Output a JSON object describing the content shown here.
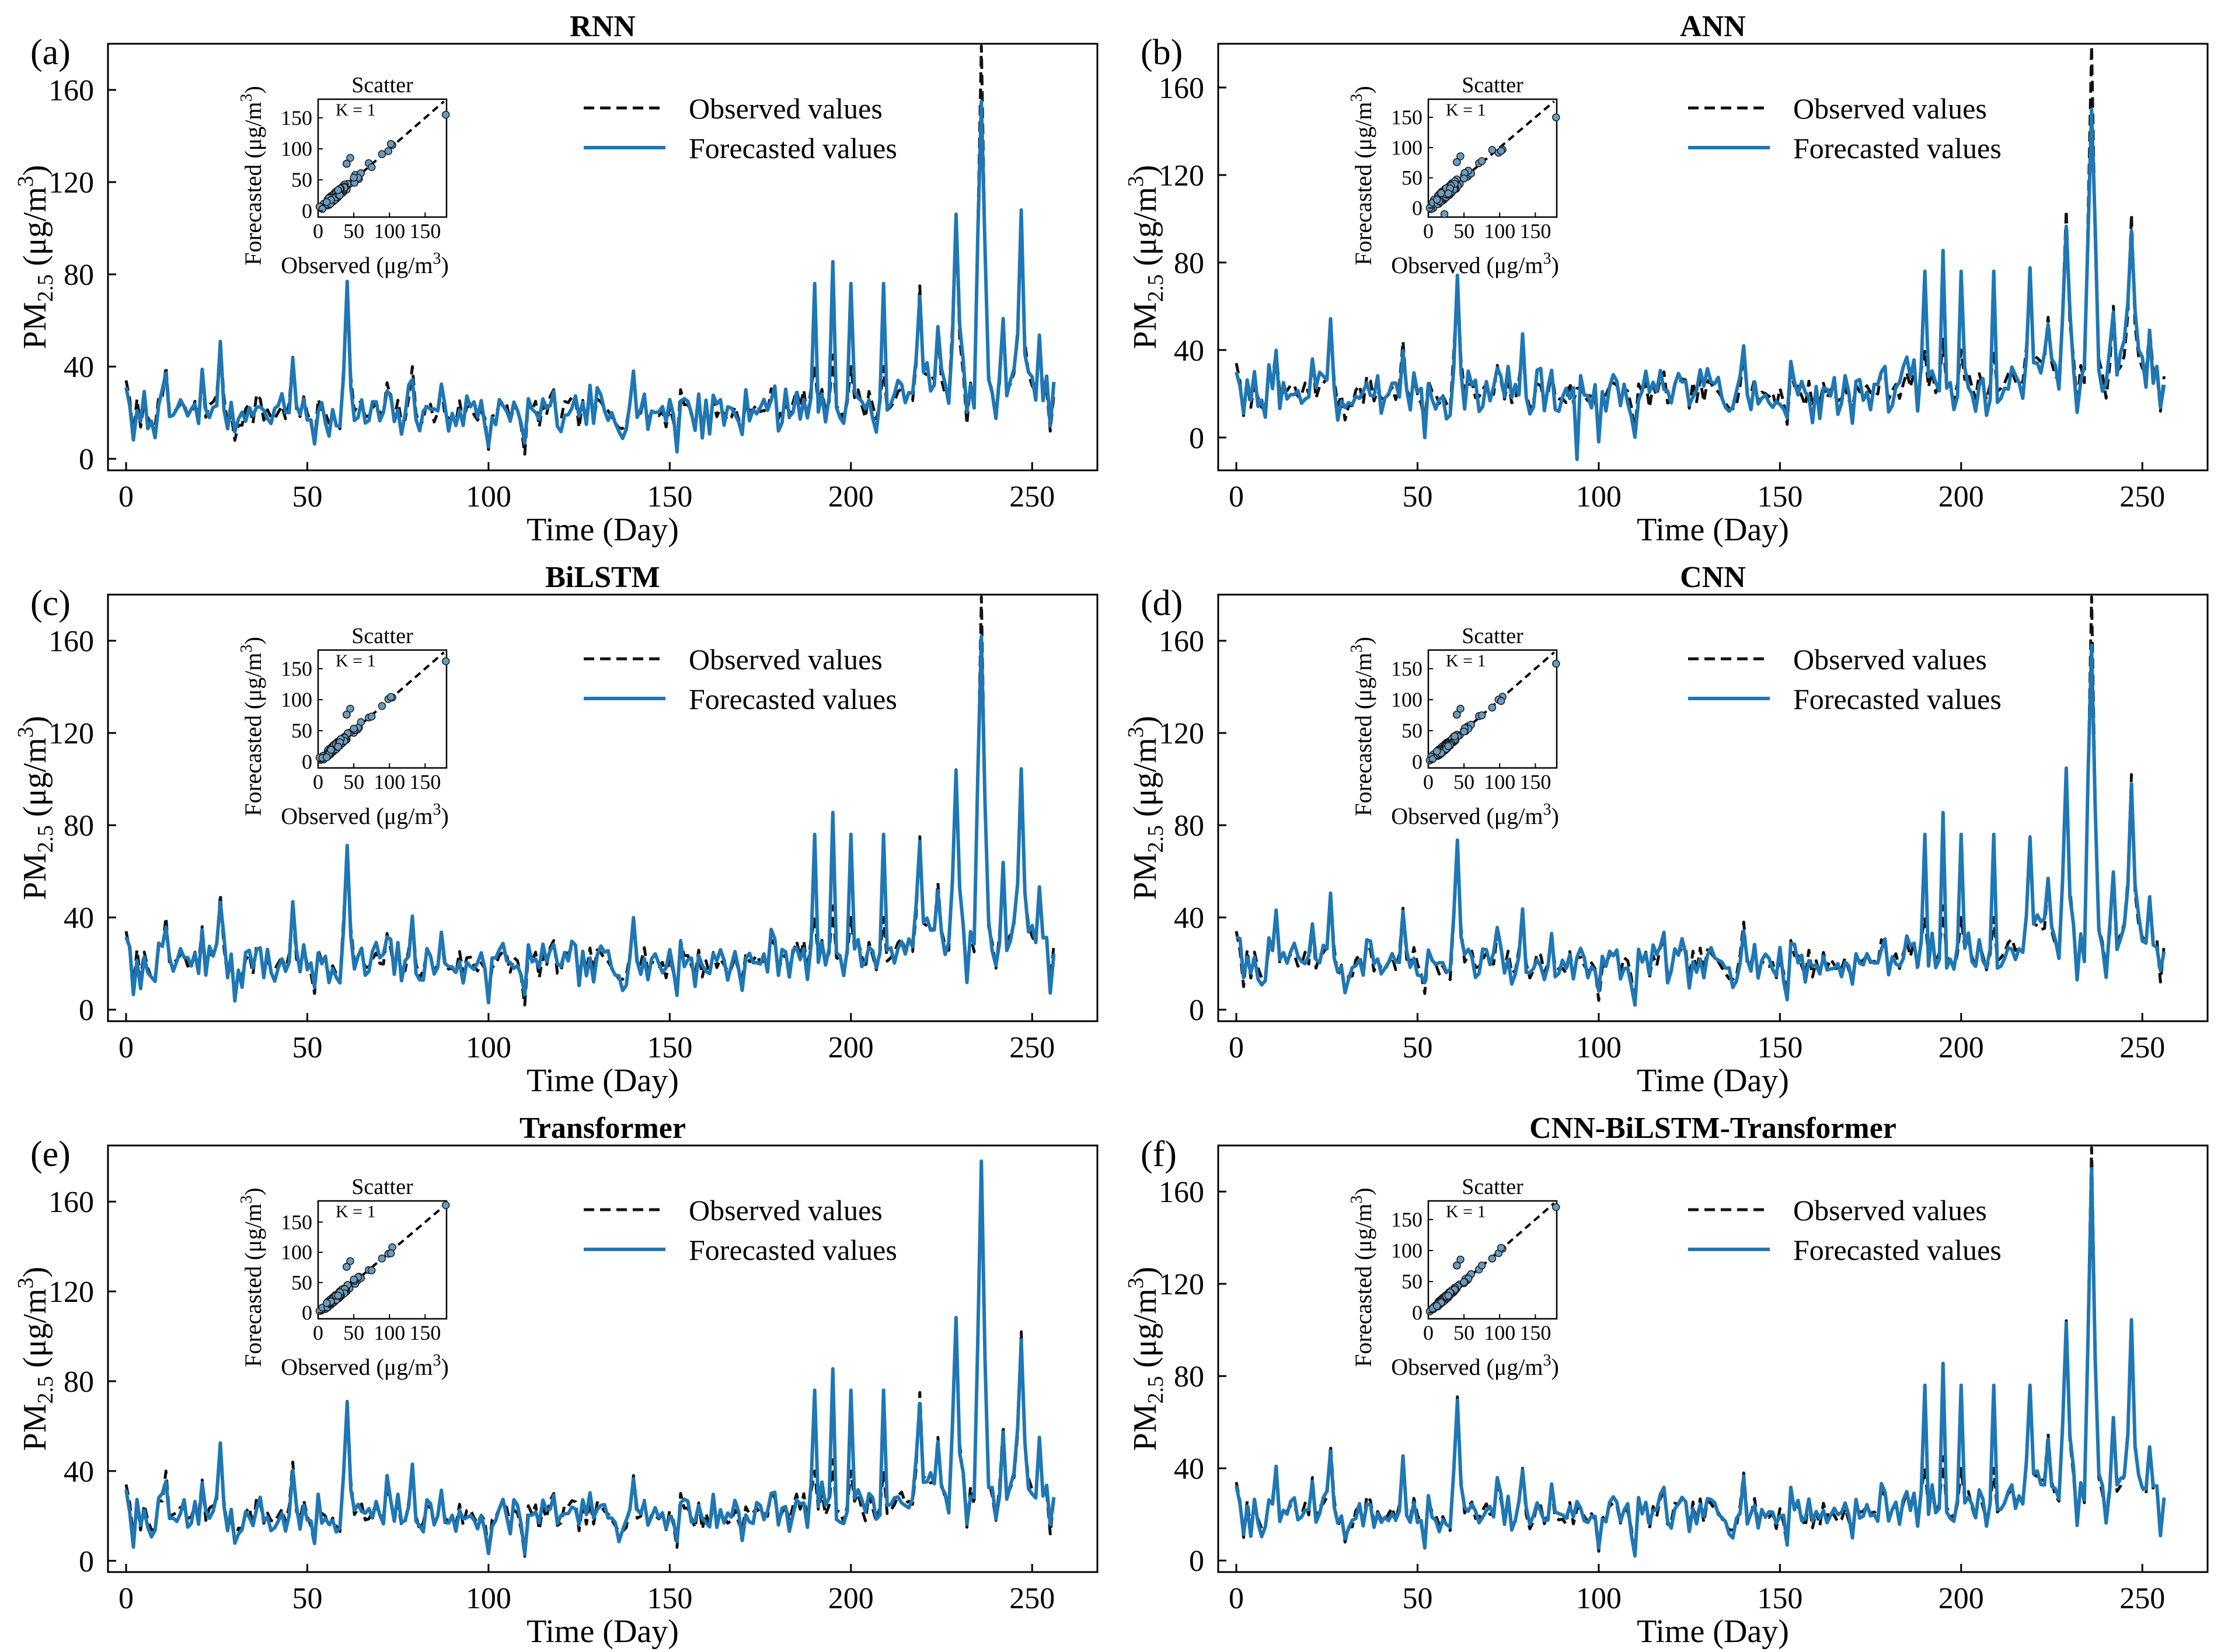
{
  "figure": {
    "panel_labels": [
      "(a)",
      "(b)",
      "(c)",
      "(d)",
      "(e)",
      "(f)"
    ],
    "observed_color": "#111111",
    "forecast_color": "#1f77b4",
    "marker_face_color": "#6a9cc0"
  },
  "chart_data": [
    {
      "type": "line",
      "panel": "(a)",
      "title": "RNN",
      "xlabel": "Time (Day)",
      "ylabel_main": "PM",
      "ylabel_sub": "2.5",
      "ylabel_unit": " (μg/m",
      "ylabel_sup": "3",
      "ylabel_close": ")",
      "xlim": [
        -5,
        268
      ],
      "ylim": [
        -5,
        180
      ],
      "xticks": [
        0,
        50,
        100,
        150,
        200,
        250
      ],
      "xtick_labels": [
        "0",
        "50",
        "100",
        "150",
        "200",
        "250"
      ],
      "yticks": [
        0,
        40,
        80,
        120,
        160
      ],
      "ytick_labels": [
        "0",
        "40",
        "80",
        "120",
        "160"
      ],
      "legend": {
        "observed": "Observed values",
        "forecast": "Forecasted values",
        "position": "top-center"
      },
      "series": [
        {
          "name": "Observed values",
          "style": "dashed",
          "color": "#111111",
          "sample_every": 1
        },
        {
          "name": "Forecasted values",
          "style": "solid",
          "color": "#1f77b4",
          "peak": 155,
          "noise": 6,
          "seed": 11
        }
      ],
      "inset": {
        "title": "Scatter",
        "xlabel": "Observed (μg/m",
        "xlabel_sup": "3",
        "xlabel_close": ")",
        "ylabel": "Forecasted (μg/m",
        "ylabel_sup": "3",
        "ylabel_close": ")",
        "xticks": [
          "0",
          "50",
          "100",
          "150"
        ],
        "yticks": [
          "0",
          "50",
          "100",
          "150"
        ],
        "annotation": "K = 1",
        "x_max": 180,
        "y_min": -10,
        "y_max": 180
      }
    },
    {
      "type": "line",
      "panel": "(b)",
      "title": "ANN",
      "xlabel": "Time (Day)",
      "ylabel_main": "PM",
      "ylabel_sub": "2.5",
      "ylabel_unit": " (μg/m",
      "ylabel_sup": "3",
      "ylabel_close": ")",
      "xlim": [
        -5,
        268
      ],
      "ylim": [
        -15,
        180
      ],
      "xticks": [
        0,
        50,
        100,
        150,
        200,
        250
      ],
      "xtick_labels": [
        "0",
        "50",
        "100",
        "150",
        "200",
        "250"
      ],
      "yticks": [
        0,
        40,
        80,
        120,
        160
      ],
      "ytick_labels": [
        "0",
        "40",
        "80",
        "120",
        "160"
      ],
      "legend": {
        "observed": "Observed values",
        "forecast": "Forecasted values",
        "position": "top-right"
      },
      "series": [
        {
          "name": "Observed values",
          "style": "dashed",
          "color": "#111111"
        },
        {
          "name": "Forecasted values",
          "style": "solid",
          "color": "#1f77b4",
          "peak": 150,
          "noise": 8,
          "seed": 23,
          "dip_day": 94,
          "dip_value": -10
        }
      ],
      "inset": {
        "title": "Scatter",
        "xlabel": "Observed (μg/m",
        "xlabel_sup": "3",
        "xlabel_close": ")",
        "ylabel": "Forecasted (μg/m",
        "ylabel_sup": "3",
        "ylabel_close": ")",
        "xticks": [
          "0",
          "50",
          "100",
          "150"
        ],
        "yticks": [
          "0",
          "50",
          "100",
          "150"
        ],
        "annotation": "K = 1",
        "x_max": 180,
        "y_min": -15,
        "y_max": 180
      }
    },
    {
      "type": "line",
      "panel": "(c)",
      "title": "BiLSTM",
      "xlabel": "Time (Day)",
      "ylabel_main": "PM",
      "ylabel_sub": "2.5",
      "ylabel_unit": " (μg/m",
      "ylabel_sup": "3",
      "ylabel_close": ")",
      "xlim": [
        -5,
        268
      ],
      "ylim": [
        -5,
        180
      ],
      "xticks": [
        0,
        50,
        100,
        150,
        200,
        250
      ],
      "xtick_labels": [
        "0",
        "50",
        "100",
        "150",
        "200",
        "250"
      ],
      "yticks": [
        0,
        40,
        80,
        120,
        160
      ],
      "ytick_labels": [
        "0",
        "40",
        "80",
        "120",
        "160"
      ],
      "legend": {
        "observed": "Observed values",
        "forecast": "Forecasted values",
        "position": "top-center"
      },
      "series": [
        {
          "name": "Observed values",
          "style": "dashed",
          "color": "#111111"
        },
        {
          "name": "Forecasted values",
          "style": "solid",
          "color": "#1f77b4",
          "peak": 162,
          "noise": 5,
          "seed": 37
        }
      ],
      "inset": {
        "title": "Scatter",
        "xlabel": "Observed (μg/m",
        "xlabel_sup": "3",
        "xlabel_close": ")",
        "ylabel": "Forecasted (μg/m",
        "ylabel_sup": "3",
        "ylabel_close": ")",
        "xticks": [
          "0",
          "50",
          "100",
          "150"
        ],
        "yticks": [
          "0",
          "50",
          "100",
          "150"
        ],
        "annotation": "K = 1",
        "x_max": 180,
        "y_min": -10,
        "y_max": 180
      }
    },
    {
      "type": "line",
      "panel": "(d)",
      "title": "CNN",
      "xlabel": "Time (Day)",
      "ylabel_main": "PM",
      "ylabel_sub": "2.5",
      "ylabel_unit": " (μg/m",
      "ylabel_sup": "3",
      "ylabel_close": ")",
      "xlim": [
        -5,
        268
      ],
      "ylim": [
        -5,
        180
      ],
      "xticks": [
        0,
        50,
        100,
        150,
        200,
        250
      ],
      "xtick_labels": [
        "0",
        "50",
        "100",
        "150",
        "200",
        "250"
      ],
      "yticks": [
        0,
        40,
        80,
        120,
        160
      ],
      "ytick_labels": [
        "0",
        "40",
        "80",
        "120",
        "160"
      ],
      "legend": {
        "observed": "Observed values",
        "forecast": "Forecasted values",
        "position": "top-right"
      },
      "series": [
        {
          "name": "Observed values",
          "style": "dashed",
          "color": "#111111"
        },
        {
          "name": "Forecasted values",
          "style": "solid",
          "color": "#1f77b4",
          "peak": 158,
          "noise": 5,
          "seed": 41
        }
      ],
      "inset": {
        "title": "Scatter",
        "xlabel": "Observed (μg/m",
        "xlabel_sup": "3",
        "xlabel_close": ")",
        "ylabel": "Forecasted (μg/m",
        "ylabel_sup": "3",
        "ylabel_close": ")",
        "xticks": [
          "0",
          "50",
          "100",
          "150"
        ],
        "yticks": [
          "0",
          "50",
          "100",
          "150"
        ],
        "annotation": "K = 1",
        "x_max": 180,
        "y_min": -10,
        "y_max": 180
      }
    },
    {
      "type": "line",
      "panel": "(e)",
      "title": "Transformer",
      "xlabel": "Time (Day)",
      "ylabel_main": "PM",
      "ylabel_sub": "2.5",
      "ylabel_unit": " (μg/m",
      "ylabel_sup": "3",
      "ylabel_close": ")",
      "xlim": [
        -5,
        268
      ],
      "ylim": [
        -5,
        185
      ],
      "xticks": [
        0,
        50,
        100,
        150,
        200,
        250
      ],
      "xtick_labels": [
        "0",
        "50",
        "100",
        "150",
        "200",
        "250"
      ],
      "yticks": [
        0,
        40,
        80,
        120,
        160
      ],
      "ytick_labels": [
        "0",
        "40",
        "80",
        "120",
        "160"
      ],
      "legend": {
        "observed": "Observed values",
        "forecast": "Forecasted values",
        "position": "top-center"
      },
      "series": [
        {
          "name": "Observed values",
          "style": "dashed",
          "color": "#111111"
        },
        {
          "name": "Forecasted values",
          "style": "solid",
          "color": "#1f77b4",
          "peak": 178,
          "noise": 5,
          "seed": 53
        }
      ],
      "inset": {
        "title": "Scatter",
        "xlabel": "Observed (μg/m",
        "xlabel_sup": "3",
        "xlabel_close": ")",
        "ylabel": "Forecasted (μg/m",
        "ylabel_sup": "3",
        "ylabel_close": ")",
        "xticks": [
          "0",
          "50",
          "100",
          "150"
        ],
        "yticks": [
          "0",
          "50",
          "100",
          "150"
        ],
        "annotation": "K = 1",
        "x_max": 180,
        "y_min": -10,
        "y_max": 185
      }
    },
    {
      "type": "line",
      "panel": "(f)",
      "title": "CNN-BiLSTM-Transformer",
      "xlabel": "Time (Day)",
      "ylabel_main": "PM",
      "ylabel_sub": "2.5",
      "ylabel_unit": " (μg/m",
      "ylabel_sup": "3",
      "ylabel_close": ")",
      "xlim": [
        -5,
        268
      ],
      "ylim": [
        -5,
        180
      ],
      "xticks": [
        0,
        50,
        100,
        150,
        200,
        250
      ],
      "xtick_labels": [
        "0",
        "50",
        "100",
        "150",
        "200",
        "250"
      ],
      "yticks": [
        0,
        40,
        80,
        120,
        160
      ],
      "ytick_labels": [
        "0",
        "40",
        "80",
        "120",
        "160"
      ],
      "legend": {
        "observed": "Observed values",
        "forecast": "Forecasted values",
        "position": "top-right"
      },
      "series": [
        {
          "name": "Observed values",
          "style": "dashed",
          "color": "#111111"
        },
        {
          "name": "Forecasted values",
          "style": "solid",
          "color": "#1f77b4",
          "peak": 170,
          "noise": 3.5,
          "seed": 67
        }
      ],
      "inset": {
        "title": "Scatter",
        "xlabel": "Observed (μg/m",
        "xlabel_sup": "3",
        "xlabel_close": ")",
        "ylabel": "Forecasted (μg/m",
        "ylabel_sup": "3",
        "ylabel_close": ")",
        "xticks": [
          "0",
          "50",
          "100",
          "150"
        ],
        "yticks": [
          "0",
          "50",
          "100",
          "150"
        ],
        "annotation": "K = 1",
        "x_max": 180,
        "y_min": -10,
        "y_max": 180
      }
    }
  ],
  "observed_series": {
    "name": "Observed values",
    "day_start": 0,
    "day_end": 256,
    "base_level": 20,
    "spikes": [
      {
        "day": 0,
        "value": 34
      },
      {
        "day": 5,
        "value": 25
      },
      {
        "day": 11,
        "value": 40
      },
      {
        "day": 21,
        "value": 36
      },
      {
        "day": 26,
        "value": 50
      },
      {
        "day": 36,
        "value": 28
      },
      {
        "day": 46,
        "value": 44
      },
      {
        "day": 61,
        "value": 71
      },
      {
        "day": 72,
        "value": 33
      },
      {
        "day": 79,
        "value": 40
      },
      {
        "day": 87,
        "value": 30
      },
      {
        "day": 118,
        "value": 30
      },
      {
        "day": 140,
        "value": 38
      },
      {
        "day": 153,
        "value": 30
      },
      {
        "day": 190,
        "value": 40
      },
      {
        "day": 195,
        "value": 45
      },
      {
        "day": 200,
        "value": 40
      },
      {
        "day": 209,
        "value": 40
      },
      {
        "day": 219,
        "value": 75
      },
      {
        "day": 224,
        "value": 55
      },
      {
        "day": 229,
        "value": 104
      },
      {
        "day": 236,
        "value": 179
      },
      {
        "day": 242,
        "value": 60
      },
      {
        "day": 247,
        "value": 102
      },
      {
        "day": 252,
        "value": 50
      },
      {
        "day": 256,
        "value": 28
      }
    ],
    "lows": [
      {
        "day": 2,
        "value": 10
      },
      {
        "day": 30,
        "value": 8
      },
      {
        "day": 52,
        "value": 7
      },
      {
        "day": 100,
        "value": 4
      },
      {
        "day": 110,
        "value": 2
      },
      {
        "day": 152,
        "value": 6
      },
      {
        "day": 232,
        "value": 15
      },
      {
        "day": 240,
        "value": 18
      },
      {
        "day": 255,
        "value": 12
      }
    ]
  }
}
